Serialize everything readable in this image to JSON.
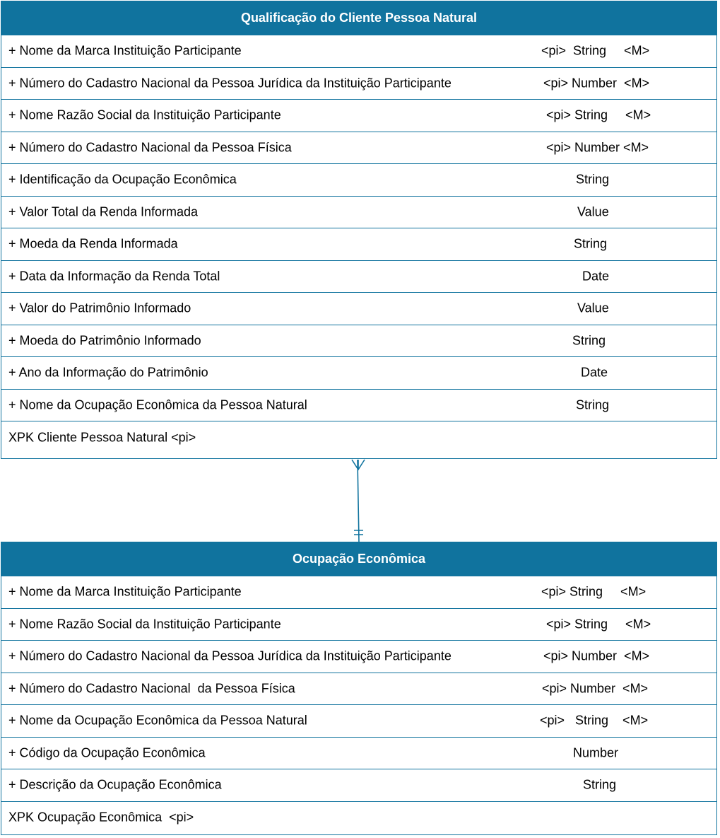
{
  "colors": {
    "accent": "#10739e",
    "header_text": "#ffffff",
    "body_text": "#000000"
  },
  "entities": [
    {
      "title": "Qualificação do Cliente Pessoa Natural",
      "attributes": [
        {
          "name": "+ Nome da Marca Instituição Participante",
          "type": "<pi>  String     <M>"
        },
        {
          "name": "+ Número do Cadastro Nacional da Pessoa Jurídica da Instituição Participante",
          "type": "<pi> Number  <M>"
        },
        {
          "name": "+ Nome Razão Social da Instituição Participante",
          "type": "<pi> String     <M>"
        },
        {
          "name": "+ Número do Cadastro Nacional da Pessoa Física",
          "type": "<pi> Number <M>"
        },
        {
          "name": "+ Identificação da Ocupação Econômica",
          "type": "String"
        },
        {
          "name": "+ Valor Total da Renda Informada",
          "type": "Value"
        },
        {
          "name": "+ Moeda da Renda Informada",
          "type": "String"
        },
        {
          "name": "+ Data da Informação da Renda Total",
          "type": "Date"
        },
        {
          "name": "+ Valor do Patrimônio Informado",
          "type": "Value"
        },
        {
          "name": "+ Moeda do Patrimônio Informado",
          "type": "String"
        },
        {
          "name": "+ Ano da Informação do Patrimônio",
          "type": "Date"
        },
        {
          "name": "+ Nome da Ocupação Econômica da Pessoa Natural",
          "type": "String"
        }
      ],
      "key": "XPK Cliente Pessoa Natural <pi>"
    },
    {
      "title": "Ocupação Econômica",
      "attributes": [
        {
          "name": "+ Nome da Marca Instituição Participante",
          "type": "<pi> String     <M>"
        },
        {
          "name": "+ Nome Razão Social da Instituição Participante",
          "type": "<pi> String     <M>"
        },
        {
          "name": "+ Número do Cadastro Nacional da Pessoa Jurídica da Instituição Participante",
          "type": "<pi> Number  <M>"
        },
        {
          "name": "+ Número do Cadastro Nacional  da Pessoa Física",
          "type": "<pi> Number  <M>"
        },
        {
          "name": "+ Nome da Ocupação Econômica da Pessoa Natural",
          "type": "<pi>   String    <M>"
        },
        {
          "name": "+ Código da Ocupação Econômica",
          "type": "Number"
        },
        {
          "name": "+ Descrição da Ocupação Econômica",
          "type": "String"
        }
      ],
      "key": "XPK Ocupação Econômica  <pi>"
    }
  ]
}
